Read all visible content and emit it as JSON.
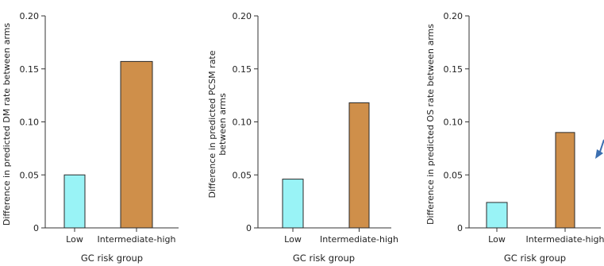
{
  "colors": {
    "low": "#99f3f6",
    "intermediate_high": "#cf8f4a",
    "bar_stroke": "#2a2a2a",
    "axis": "#333333",
    "arrow": "#3b6fb0"
  },
  "chart_data": [
    {
      "type": "bar",
      "categories": [
        "Low",
        "Intermediate-high"
      ],
      "values": [
        0.05,
        0.157
      ],
      "xlabel": "GC risk group",
      "ylabel_lines": [
        "Difference in predicted DM rate between arms"
      ],
      "ylim": [
        0,
        0.2
      ],
      "yticks": [
        "0",
        "0.05",
        "0.10",
        "0.15",
        "0.20"
      ],
      "grid": false
    },
    {
      "type": "bar",
      "categories": [
        "Low",
        "Intermediate-high"
      ],
      "values": [
        0.046,
        0.118
      ],
      "xlabel": "GC risk group",
      "ylabel_lines": [
        "Difference in predicted PCSM rate",
        "between arms"
      ],
      "ylim": [
        0,
        0.2
      ],
      "yticks": [
        "0",
        "0.05",
        "0.10",
        "0.15",
        "0.20"
      ],
      "grid": false
    },
    {
      "type": "bar",
      "categories": [
        "Low",
        "Intermediate-high"
      ],
      "values": [
        0.024,
        0.09
      ],
      "xlabel": "GC risk group",
      "ylabel_lines": [
        "Difference in predicted OS rate between arms"
      ],
      "ylim": [
        0,
        0.2
      ],
      "yticks": [
        "0",
        "0.05",
        "0.10",
        "0.15",
        "0.20"
      ],
      "grid": false
    }
  ]
}
